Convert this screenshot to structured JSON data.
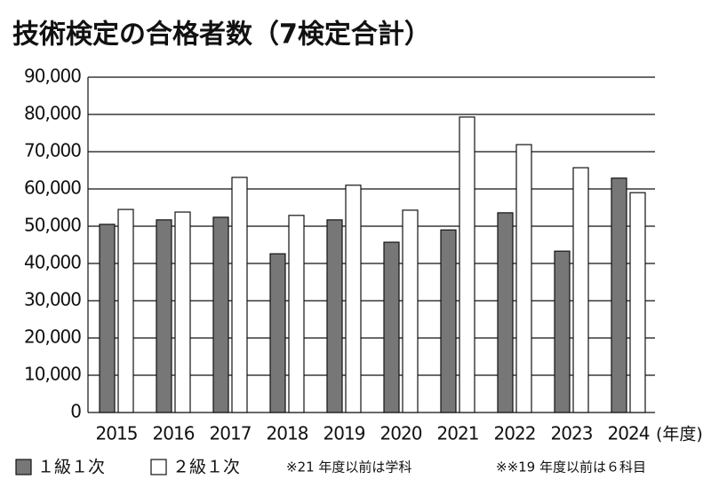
{
  "chart_data": {
    "type": "bar",
    "title": "技術検定の合格者数（7検定合計）",
    "x_label": "(年度)",
    "categories": [
      "2015",
      "2016",
      "2017",
      "2018",
      "2019",
      "2020",
      "2021",
      "2022",
      "2023",
      "2024"
    ],
    "series": [
      {
        "name": "１級１次",
        "color": "#777777",
        "values": [
          50500,
          51700,
          52400,
          42600,
          51700,
          45700,
          49000,
          53600,
          43300,
          62900
        ]
      },
      {
        "name": "２級１次",
        "color": "#ffffff",
        "values": [
          54500,
          53800,
          63100,
          52900,
          61000,
          54300,
          79300,
          71900,
          65700,
          59000
        ]
      }
    ],
    "notes": [
      "※21 年度以前は学科",
      "※※19 年度以前は６科目"
    ],
    "ylim": [
      0,
      90000
    ],
    "yticks": [
      0,
      {
        "value": 10000,
        "label": "10,000"
      },
      {
        "value": 20000,
        "label": "20,000"
      },
      {
        "value": 30000,
        "label": "30,000"
      },
      {
        "value": 40000,
        "label": "40,000"
      },
      {
        "value": 50000,
        "label": "50,000"
      },
      {
        "value": 60000,
        "label": "60,000"
      },
      {
        "value": 70000,
        "label": "70,000"
      },
      {
        "value": 80000,
        "label": "80,000"
      },
      {
        "value": 90000,
        "label": "90,000"
      }
    ],
    "grid": true
  }
}
